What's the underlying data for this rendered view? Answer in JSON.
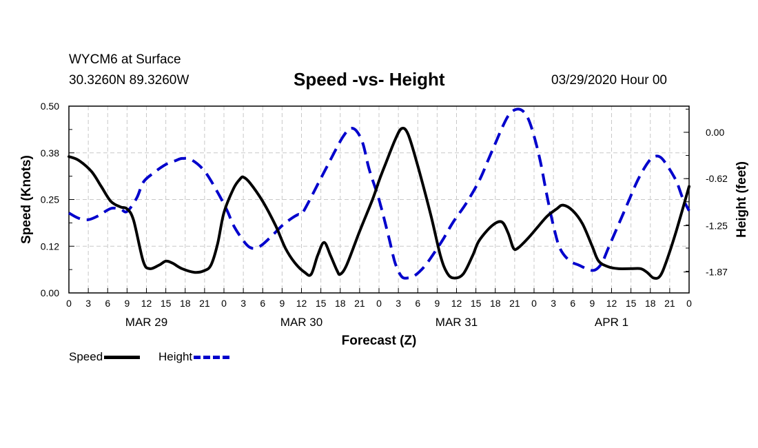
{
  "header": {
    "station": "WYCM6 at Surface",
    "coords": "30.3260N 89.3260W",
    "title": "Speed -vs- Height",
    "datetime": "03/29/2020 Hour 00"
  },
  "chart_data": {
    "type": "line",
    "title": "Speed -vs- Height",
    "xlabel": "Forecast (Z)",
    "ylabel_left": "Speed (Knots)",
    "ylabel_right": "Height (feet)",
    "xlim": [
      0,
      96
    ],
    "ylim_left": [
      0,
      0.5
    ],
    "ylim_right": [
      -2.15,
      0.35
    ],
    "left_ticks": [
      "0.00",
      "0.12",
      "0.25",
      "0.38",
      "0.50"
    ],
    "right_ticks": [
      {
        "value": 0.0,
        "label": "0.00"
      },
      {
        "value": -0.62,
        "label": "-0.62"
      },
      {
        "value": -1.25,
        "label": "-1.25"
      },
      {
        "value": -1.87,
        "label": "-1.87"
      }
    ],
    "x_tick_labels": [
      "0",
      "3",
      "6",
      "9",
      "12",
      "15",
      "18",
      "21",
      "0",
      "3",
      "6",
      "9",
      "12",
      "15",
      "18",
      "21",
      "0",
      "3",
      "6",
      "9",
      "12",
      "15",
      "18",
      "21",
      "0",
      "3",
      "6",
      "9",
      "12",
      "15",
      "18",
      "21",
      "0"
    ],
    "day_labels": [
      {
        "hour": 12,
        "label": "MAR 29"
      },
      {
        "hour": 36,
        "label": "MAR 30"
      },
      {
        "hour": 60,
        "label": "MAR 31"
      },
      {
        "hour": 84,
        "label": "APR 1"
      }
    ],
    "grid": true,
    "series": [
      {
        "name": "Speed",
        "axis": "left",
        "color": "#000000",
        "style": "solid",
        "points": [
          [
            0,
            0.365
          ],
          [
            1.5,
            0.355
          ],
          [
            3.5,
            0.325
          ],
          [
            5,
            0.285
          ],
          [
            6.5,
            0.245
          ],
          [
            8,
            0.23
          ],
          [
            9,
            0.225
          ],
          [
            10,
            0.195
          ],
          [
            11.5,
            0.085
          ],
          [
            12.5,
            0.065
          ],
          [
            14,
            0.075
          ],
          [
            15,
            0.085
          ],
          [
            16,
            0.08
          ],
          [
            17.5,
            0.065
          ],
          [
            19.5,
            0.055
          ],
          [
            21,
            0.06
          ],
          [
            22,
            0.075
          ],
          [
            23,
            0.13
          ],
          [
            24,
            0.215
          ],
          [
            25.5,
            0.28
          ],
          [
            26.5,
            0.305
          ],
          [
            27,
            0.31
          ],
          [
            28,
            0.295
          ],
          [
            30,
            0.245
          ],
          [
            32,
            0.18
          ],
          [
            33.5,
            0.12
          ],
          [
            35,
            0.08
          ],
          [
            36.5,
            0.055
          ],
          [
            37.5,
            0.05
          ],
          [
            38.5,
            0.1
          ],
          [
            39.5,
            0.135
          ],
          [
            40.5,
            0.1
          ],
          [
            41.5,
            0.06
          ],
          [
            42,
            0.05
          ],
          [
            43,
            0.075
          ],
          [
            45,
            0.165
          ],
          [
            47,
            0.25
          ],
          [
            48,
            0.3
          ],
          [
            49,
            0.345
          ],
          [
            50.5,
            0.41
          ],
          [
            51.5,
            0.44
          ],
          [
            52.5,
            0.425
          ],
          [
            54,
            0.34
          ],
          [
            56,
            0.21
          ],
          [
            57.5,
            0.1
          ],
          [
            58.5,
            0.055
          ],
          [
            59.5,
            0.04
          ],
          [
            61,
            0.05
          ],
          [
            62.5,
            0.1
          ],
          [
            63.5,
            0.14
          ],
          [
            65.5,
            0.18
          ],
          [
            67,
            0.19
          ],
          [
            68,
            0.16
          ],
          [
            68.8,
            0.12
          ],
          [
            69.5,
            0.12
          ],
          [
            71,
            0.145
          ],
          [
            72.5,
            0.175
          ],
          [
            74,
            0.205
          ],
          [
            75.5,
            0.225
          ],
          [
            76.5,
            0.235
          ],
          [
            78,
            0.22
          ],
          [
            79.5,
            0.185
          ],
          [
            81,
            0.125
          ],
          [
            82,
            0.085
          ],
          [
            83.5,
            0.07
          ],
          [
            85,
            0.065
          ],
          [
            87,
            0.065
          ],
          [
            88.5,
            0.065
          ],
          [
            89.5,
            0.055
          ],
          [
            90.5,
            0.04
          ],
          [
            91.5,
            0.045
          ],
          [
            92.5,
            0.085
          ],
          [
            94,
            0.165
          ],
          [
            96,
            0.285
          ]
        ]
      },
      {
        "name": "Height",
        "axis": "right",
        "color": "#0000cc",
        "style": "dashed",
        "points": [
          [
            0,
            -1.08
          ],
          [
            1.5,
            -1.15
          ],
          [
            3,
            -1.17
          ],
          [
            4.5,
            -1.12
          ],
          [
            6.5,
            -1.02
          ],
          [
            8,
            -1.03
          ],
          [
            9,
            -1.06
          ],
          [
            10.5,
            -0.88
          ],
          [
            11.5,
            -0.67
          ],
          [
            13,
            -0.55
          ],
          [
            15,
            -0.43
          ],
          [
            16.5,
            -0.38
          ],
          [
            17.5,
            -0.35
          ],
          [
            19,
            -0.37
          ],
          [
            21,
            -0.52
          ],
          [
            23,
            -0.8
          ],
          [
            24.5,
            -1.05
          ],
          [
            25.5,
            -1.25
          ],
          [
            27,
            -1.45
          ],
          [
            28,
            -1.54
          ],
          [
            29,
            -1.55
          ],
          [
            30,
            -1.5
          ],
          [
            31.5,
            -1.38
          ],
          [
            33,
            -1.25
          ],
          [
            34.5,
            -1.15
          ],
          [
            35.5,
            -1.1
          ],
          [
            36,
            -1.1
          ],
          [
            37,
            -0.95
          ],
          [
            38.5,
            -0.7
          ],
          [
            40,
            -0.45
          ],
          [
            41.5,
            -0.2
          ],
          [
            42.5,
            -0.05
          ],
          [
            43.5,
            0.05
          ],
          [
            44.5,
            0.02
          ],
          [
            45.5,
            -0.15
          ],
          [
            46.5,
            -0.5
          ],
          [
            48,
            -0.9
          ],
          [
            49.5,
            -1.4
          ],
          [
            50.5,
            -1.75
          ],
          [
            51.5,
            -1.93
          ],
          [
            52.5,
            -1.95
          ],
          [
            53.5,
            -1.92
          ],
          [
            55,
            -1.8
          ],
          [
            56.5,
            -1.62
          ],
          [
            58,
            -1.42
          ],
          [
            59.5,
            -1.2
          ],
          [
            61.5,
            -0.95
          ],
          [
            63.5,
            -0.65
          ],
          [
            65,
            -0.35
          ],
          [
            66,
            -0.15
          ],
          [
            67,
            0.05
          ],
          [
            68,
            0.22
          ],
          [
            69,
            0.3
          ],
          [
            70,
            0.3
          ],
          [
            71,
            0.2
          ],
          [
            72,
            -0.05
          ],
          [
            73,
            -0.4
          ],
          [
            74,
            -0.85
          ],
          [
            75,
            -1.25
          ],
          [
            76,
            -1.55
          ],
          [
            77.5,
            -1.72
          ],
          [
            79,
            -1.78
          ],
          [
            80.5,
            -1.84
          ],
          [
            81.5,
            -1.84
          ],
          [
            82.5,
            -1.75
          ],
          [
            83.5,
            -1.55
          ],
          [
            85,
            -1.25
          ],
          [
            86.5,
            -0.95
          ],
          [
            88,
            -0.65
          ],
          [
            89.5,
            -0.42
          ],
          [
            90.5,
            -0.33
          ],
          [
            91.5,
            -0.33
          ],
          [
            92.5,
            -0.43
          ],
          [
            94,
            -0.65
          ],
          [
            95,
            -0.88
          ],
          [
            96,
            -1.05
          ]
        ]
      }
    ]
  },
  "legend": {
    "speed_label": "Speed",
    "height_label": "Height",
    "speed_color": "#000000",
    "height_color": "#0000cc"
  }
}
